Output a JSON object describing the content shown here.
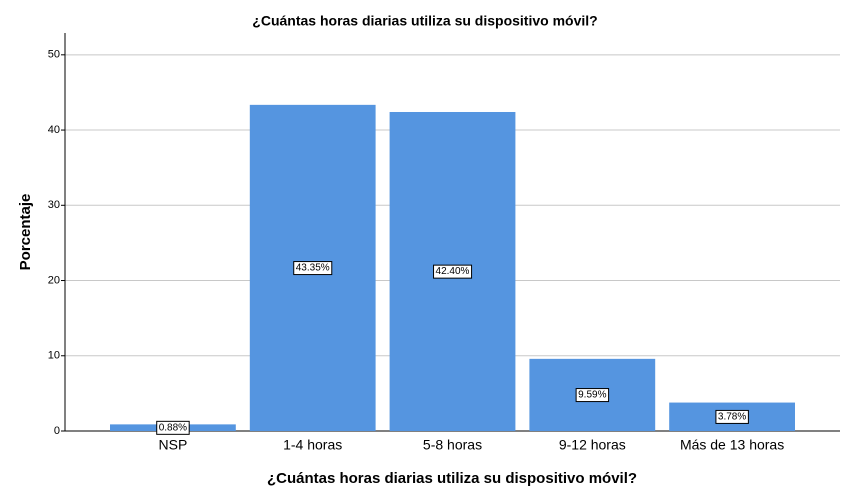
{
  "chart_data": {
    "type": "bar",
    "title": "¿Cuántas horas diarias utiliza su dispositivo móvil?",
    "x_label": "¿Cuántas horas diarias utiliza su dispositivo móvil?",
    "y_label": "Porcentaje",
    "categories": [
      "NSP",
      "1-4 horas",
      "5-8 horas",
      "9-12 horas",
      "Más de 13 horas"
    ],
    "values": [
      0.88,
      43.35,
      42.4,
      9.59,
      3.78
    ],
    "value_labels": [
      "0.88%",
      "43.35%",
      "42.40%",
      "9.59%",
      "3.78%"
    ],
    "color": "#5595e0",
    "ylim": [
      0,
      52.9
    ],
    "yticks": [
      0,
      10,
      20,
      30,
      40,
      50
    ],
    "grid": true
  }
}
